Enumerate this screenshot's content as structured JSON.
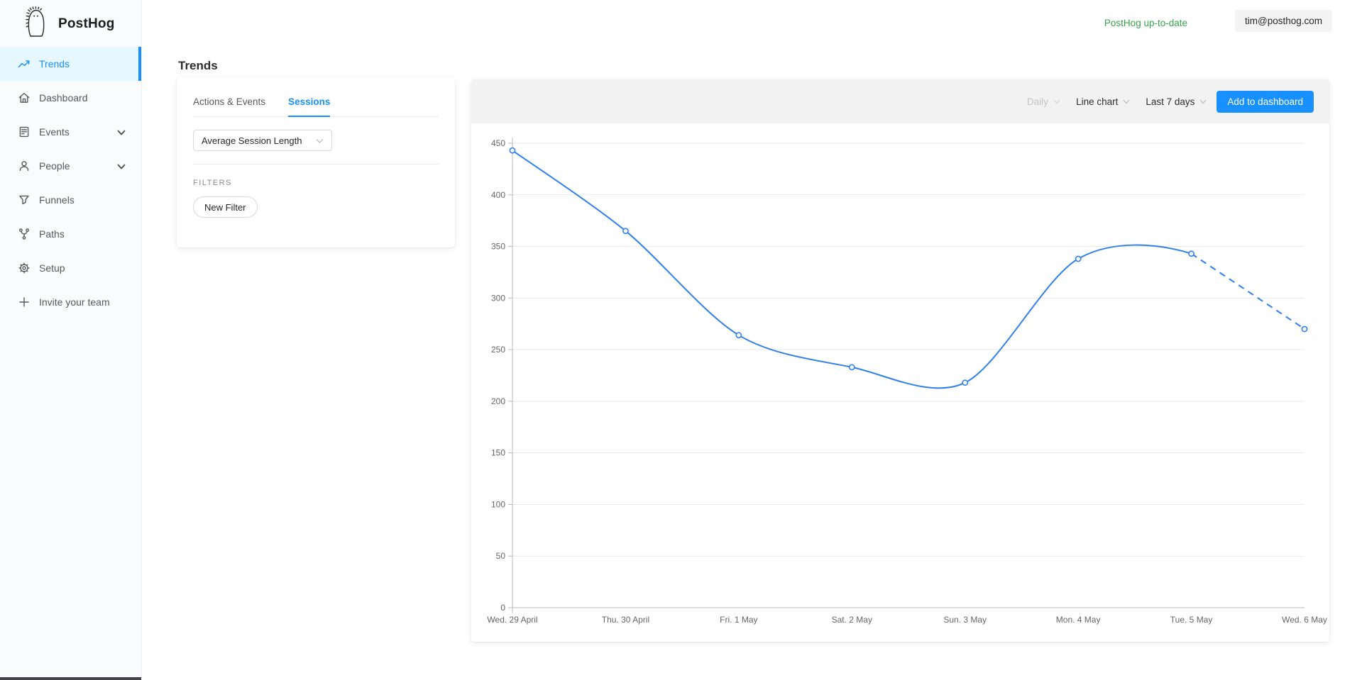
{
  "app": {
    "brand": "PostHog",
    "status_text": "PostHog up-to-date",
    "user_email": "tim@posthog.com"
  },
  "page": {
    "title": "Trends"
  },
  "sidebar": {
    "items": [
      {
        "label": "Trends",
        "icon": "trend-icon",
        "selected": true,
        "chevron": false
      },
      {
        "label": "Dashboard",
        "icon": "home-icon",
        "selected": false,
        "chevron": false
      },
      {
        "label": "Events",
        "icon": "events-icon",
        "selected": false,
        "chevron": true
      },
      {
        "label": "People",
        "icon": "user-icon",
        "selected": false,
        "chevron": true
      },
      {
        "label": "Funnels",
        "icon": "funnel-icon",
        "selected": false,
        "chevron": false
      },
      {
        "label": "Paths",
        "icon": "paths-icon",
        "selected": false,
        "chevron": false
      },
      {
        "label": "Setup",
        "icon": "gear-icon",
        "selected": false,
        "chevron": false
      },
      {
        "label": "Invite your team",
        "icon": "plus-icon",
        "selected": false,
        "chevron": false
      }
    ]
  },
  "panel": {
    "tabs": [
      {
        "label": "Actions & Events",
        "active": false
      },
      {
        "label": "Sessions",
        "active": true
      }
    ],
    "metric_select": {
      "value": "Average Session Length"
    },
    "filters_label": "FILTERS",
    "new_filter_label": "New Filter"
  },
  "toolbar": {
    "interval_label": "Daily",
    "chart_type_label": "Line chart",
    "date_range_label": "Last 7 days",
    "add_button_label": "Add to dashboard"
  },
  "colors": {
    "accent_blue": "#1890ff",
    "line_blue": "#2f80ed",
    "status_green": "#36a34c",
    "selected_bg": "#e6f7ff"
  },
  "chart_data": {
    "type": "line",
    "title": "",
    "xlabel": "",
    "ylabel": "",
    "categories": [
      "Wed. 29 April",
      "Thu. 30 April",
      "Fri. 1 May",
      "Sat. 2 May",
      "Sun. 3 May",
      "Mon. 4 May",
      "Tue. 5 May",
      "Wed. 6 May"
    ],
    "series": [
      {
        "name": "Average Session Length",
        "values": [
          443,
          365,
          264,
          233,
          218,
          338,
          343,
          270
        ]
      }
    ],
    "ylim": [
      0,
      450
    ],
    "ytick_step": 50,
    "yticks": [
      0,
      50,
      100,
      150,
      200,
      250,
      300,
      350,
      400,
      450
    ],
    "grid": true,
    "legend": false,
    "dashed_from_index": 6,
    "smooth": true
  }
}
